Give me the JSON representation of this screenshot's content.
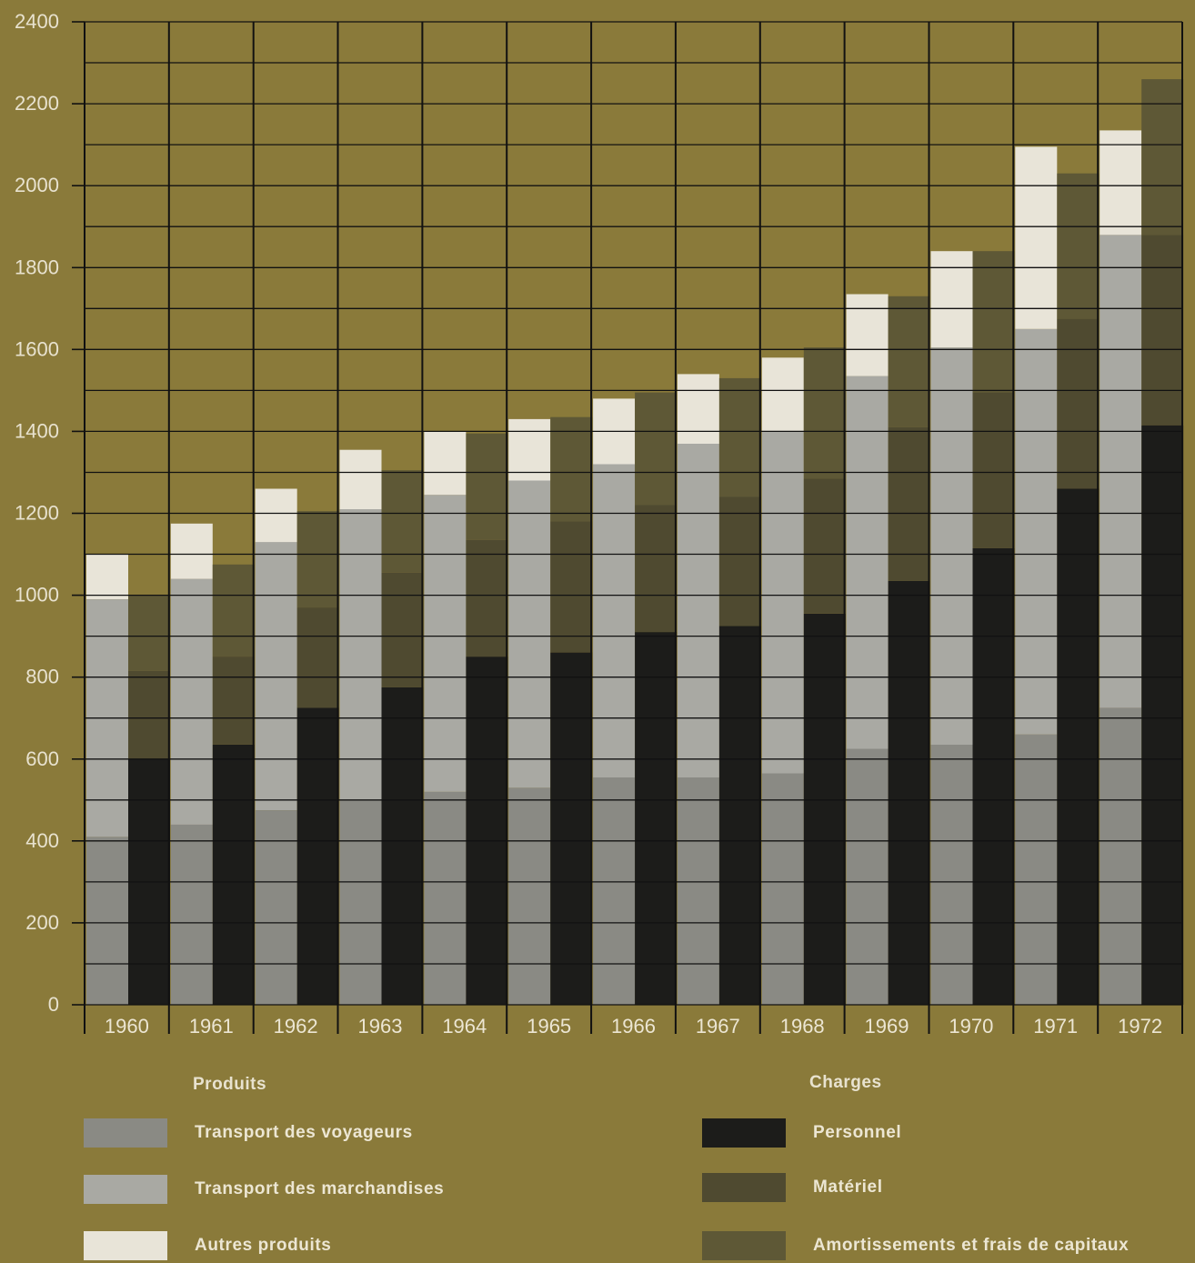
{
  "chart_data": {
    "type": "bar",
    "stacked": true,
    "grouped": true,
    "categories": [
      "1960",
      "1961",
      "1962",
      "1963",
      "1964",
      "1965",
      "1966",
      "1967",
      "1968",
      "1969",
      "1970",
      "1971",
      "1972"
    ],
    "ylim": [
      0,
      2400
    ],
    "yticks": [
      0,
      200,
      400,
      600,
      800,
      1000,
      1200,
      1400,
      1600,
      1800,
      2000,
      2200,
      2400
    ],
    "grid": true,
    "groups": [
      {
        "name": "Produits",
        "series": [
          {
            "name": "Transport des voyageurs",
            "color": "#8a8a84",
            "values": [
              410,
              440,
              475,
              500,
              520,
              530,
              555,
              555,
              565,
              625,
              635,
              660,
              725
            ]
          },
          {
            "name": "Transport des marchandises",
            "color": "#a9a9a3",
            "values": [
              580,
              600,
              655,
              710,
              725,
              750,
              765,
              815,
              835,
              910,
              970,
              990,
              1155
            ]
          },
          {
            "name": "Autres produits",
            "color": "#e8e4d8",
            "values": [
              110,
              135,
              130,
              145,
              155,
              150,
              160,
              170,
              180,
              200,
              235,
              445,
              255
            ]
          }
        ]
      },
      {
        "name": "Charges",
        "series": [
          {
            "name": "Personnel",
            "color": "#1c1c1a",
            "values": [
              600,
              635,
              725,
              775,
              850,
              860,
              910,
              925,
              955,
              1035,
              1115,
              1260,
              1415
            ]
          },
          {
            "name": "Matériel",
            "color": "#4f4a30",
            "values": [
              215,
              215,
              245,
              280,
              285,
              320,
              310,
              315,
              330,
              375,
              380,
              415,
              465
            ]
          },
          {
            "name": "Amortissements et frais de capitaux",
            "color": "#5e5836",
            "values": [
              185,
              225,
              235,
              250,
              260,
              255,
              275,
              290,
              320,
              320,
              345,
              355,
              380
            ]
          }
        ]
      }
    ]
  }
}
